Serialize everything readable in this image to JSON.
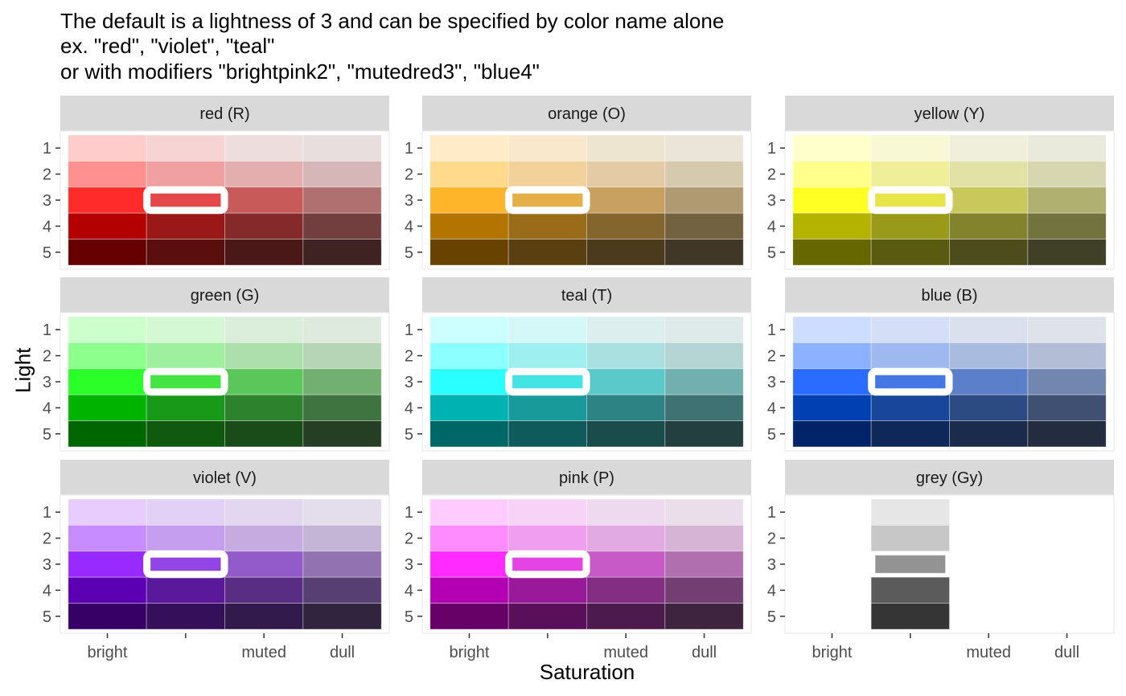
{
  "title_lines": [
    "The default is a lightness of 3 and can be specified by color name alone",
    "ex. \"red\", \"violet\", \"teal\"",
    "or with modifiers \"brightpink2\", \"mutedred3\", \"blue4\""
  ],
  "chart_data": {
    "type": "heatmap",
    "xlabel": "Saturation",
    "ylabel": "Light",
    "x_ticks": [
      "bright",
      "",
      "muted",
      "dull"
    ],
    "y_ticks": [
      "1",
      "2",
      "3",
      "4",
      "5"
    ],
    "default_cell": {
      "saturation_index": 1,
      "light": 3
    },
    "facets": [
      {
        "label": "red (R)",
        "colors": [
          [
            "#FFCCCC",
            "#F7D4D4",
            "#EEDDDD",
            "#E8DEDE"
          ],
          [
            "#FF9090",
            "#F0A0A0",
            "#E2AEAE",
            "#D6B6B6"
          ],
          [
            "#FF2A2A",
            "#E5484A",
            "#C85A5A",
            "#B07070"
          ],
          [
            "#B30000",
            "#9A1818",
            "#842A2A",
            "#733E3E"
          ],
          [
            "#670000",
            "#5A0E0E",
            "#4B1818",
            "#3F2222"
          ]
        ]
      },
      {
        "label": "orange (O)",
        "colors": [
          [
            "#FFEBC8",
            "#F9E8CC",
            "#EEE5D0",
            "#EBE5D9"
          ],
          [
            "#FFD98C",
            "#F2D29A",
            "#E4CBA6",
            "#D5C9AE"
          ],
          [
            "#FFB52A",
            "#E5AF4A",
            "#C8A05F",
            "#AF9A72"
          ],
          [
            "#B37400",
            "#9A6C1A",
            "#83652D",
            "#72623F"
          ],
          [
            "#674200",
            "#5A3F10",
            "#4C3A1C",
            "#403727"
          ]
        ]
      },
      {
        "label": "yellow (Y)",
        "colors": [
          [
            "#FFFFCC",
            "#F8F8D4",
            "#EFEFDC",
            "#E9E9DC"
          ],
          [
            "#FFFF8C",
            "#EFEF99",
            "#E2E2A6",
            "#D6D6B0"
          ],
          [
            "#FFFF24",
            "#E6E64A",
            "#C9C95B",
            "#B0B070"
          ],
          [
            "#B3B300",
            "#9A9A1A",
            "#83832D",
            "#73733E"
          ],
          [
            "#676700",
            "#5A5A10",
            "#4C4C1C",
            "#404027"
          ]
        ]
      },
      {
        "label": "green (G)",
        "colors": [
          [
            "#CCFFCC",
            "#D4F7D4",
            "#DBEEDB",
            "#DFEADF"
          ],
          [
            "#8CFF8C",
            "#9EF09E",
            "#ACDFAC",
            "#B6D4B6"
          ],
          [
            "#2AFF2A",
            "#44E444",
            "#5BC75B",
            "#72B072"
          ],
          [
            "#00B300",
            "#189A18",
            "#2D832D",
            "#3F733F"
          ],
          [
            "#006700",
            "#0F5A0F",
            "#1A4C1A",
            "#243F24"
          ]
        ]
      },
      {
        "label": "teal (T)",
        "colors": [
          [
            "#CCFFFF",
            "#D4F7F7",
            "#DCEEEE",
            "#DEEAEA"
          ],
          [
            "#8CFFFF",
            "#9EF0F0",
            "#ABE0E0",
            "#B5D5D5"
          ],
          [
            "#2AFFFF",
            "#44E4E4",
            "#5BC9C9",
            "#72B0B0"
          ],
          [
            "#00B3B3",
            "#189A9A",
            "#2D8383",
            "#3F7373"
          ],
          [
            "#006767",
            "#0F5A5A",
            "#1A4C4C",
            "#243F3F"
          ]
        ]
      },
      {
        "label": "blue (B)",
        "colors": [
          [
            "#CCDDFF",
            "#D4DEF7",
            "#DBE0EE",
            "#DFE2EA"
          ],
          [
            "#8CB2FF",
            "#9EB8F0",
            "#AABBE0",
            "#B3BED6"
          ],
          [
            "#2A6CFF",
            "#4478E4",
            "#5B80C9",
            "#7287B0"
          ],
          [
            "#0040B3",
            "#18469A",
            "#2D4B83",
            "#3F5073"
          ],
          [
            "#002467",
            "#0F285A",
            "#1A2B4C",
            "#242D3F"
          ]
        ]
      },
      {
        "label": "violet (V)",
        "colors": [
          [
            "#E6CCFF",
            "#E3D0F6",
            "#E2D7EE",
            "#E4DDEB"
          ],
          [
            "#C78CFF",
            "#C69EF0",
            "#C5ABE0",
            "#C4B4D6"
          ],
          [
            "#992AFF",
            "#9244E4",
            "#925BC9",
            "#9272B0"
          ],
          [
            "#5C00B3",
            "#5A189A",
            "#582D83",
            "#583F73"
          ],
          [
            "#360067",
            "#360F5A",
            "#331A4C",
            "#31243F"
          ]
        ]
      },
      {
        "label": "pink (P)",
        "colors": [
          [
            "#FFCCFF",
            "#F7D4F7",
            "#EEDAEE",
            "#EADEEA"
          ],
          [
            "#FF8CFF",
            "#F09EF0",
            "#E2AAE2",
            "#D6B4D6"
          ],
          [
            "#FF2AFF",
            "#E444E4",
            "#C85AC8",
            "#B070B0"
          ],
          [
            "#B300B3",
            "#9A189A",
            "#832D83",
            "#733F73"
          ],
          [
            "#670067",
            "#5A0F5A",
            "#4C1A4C",
            "#3F243F"
          ]
        ]
      },
      {
        "label": "grey (Gy)",
        "colors": [
          [
            null,
            "#E6E6E6",
            null,
            null
          ],
          [
            null,
            "#C7C7C7",
            null,
            null
          ],
          [
            null,
            "#939393",
            null,
            null
          ],
          [
            null,
            "#5B5B5B",
            null,
            null
          ],
          [
            null,
            "#353535",
            null,
            null
          ]
        ]
      }
    ]
  }
}
